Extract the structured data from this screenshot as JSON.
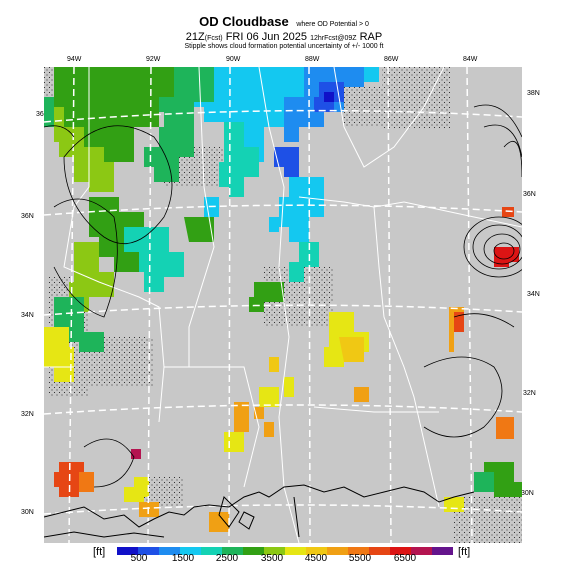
{
  "header": {
    "title": "OD Cloudbase",
    "title_note": "where OD Potential > 0",
    "valid_time": "21Z",
    "valid_tag": "(Fcst)",
    "valid_date": "FRI 06 Jun 2025",
    "run_info": "12hrFcst@09Z",
    "model": "RAP",
    "subtitle": "Stipple shows cloud formation potential uncertainty of +/- 1000 ft"
  },
  "map": {
    "background_color": "#c8c8c8",
    "longitude_labels": [
      "94W",
      "92W",
      "90W",
      "88W",
      "86W",
      "84W"
    ],
    "latitude_labels_left": [
      "36N",
      "34N",
      "32N",
      "30N"
    ],
    "latitude_labels_right": [
      "38N",
      "36N",
      "34N",
      "32N",
      "30N"
    ],
    "top_left_label": "36N"
  },
  "colorbar": {
    "unit_left": "[ft]",
    "unit_right": "[ft]",
    "tick_labels": [
      "500",
      "1500",
      "2500",
      "3500",
      "4500",
      "5500",
      "6500"
    ],
    "colors": [
      "#1010c8",
      "#1e50e6",
      "#1e8cf0",
      "#14c8f0",
      "#14d2b4",
      "#1eb45a",
      "#32a014",
      "#8cc814",
      "#e6e614",
      "#f0c814",
      "#f0a014",
      "#f07814",
      "#e64614",
      "#dc1414",
      "#b41450",
      "#64148c"
    ]
  }
}
